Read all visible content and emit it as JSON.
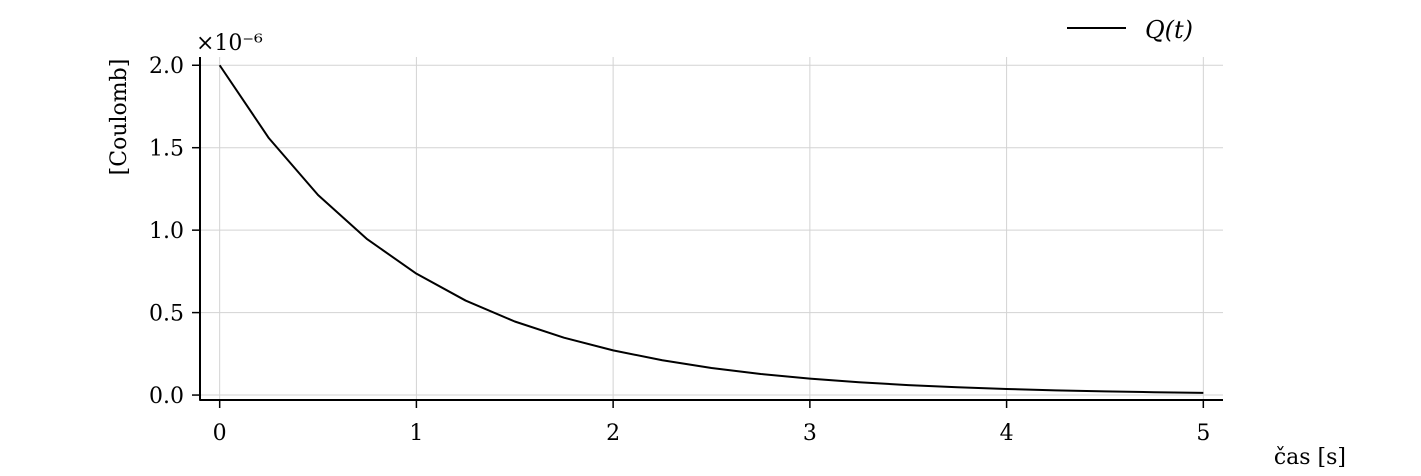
{
  "chart_data": {
    "type": "line",
    "xlabel": "čas [s]",
    "ylabel": "[Coulomb]",
    "y_offset_label": "×10⁻⁶",
    "xlim": [
      -0.1,
      5.1
    ],
    "ylim": [
      -0.03,
      2.05
    ],
    "y_scale_factor": 1e-06,
    "grid": true,
    "legend_position": "top-right",
    "x_ticks": [
      0,
      1,
      2,
      3,
      4,
      5
    ],
    "x_tick_labels": [
      "0",
      "1",
      "2",
      "3",
      "4",
      "5"
    ],
    "y_ticks": [
      0.0,
      0.5,
      1.0,
      1.5,
      2.0
    ],
    "y_tick_labels": [
      "0.0",
      "0.5",
      "1.0",
      "1.5",
      "2.0"
    ],
    "series": [
      {
        "name": "Q(t)",
        "color": "#000000",
        "x": [
          0,
          0.25,
          0.5,
          0.75,
          1,
          1.25,
          1.5,
          1.75,
          2,
          2.25,
          2.5,
          2.75,
          3,
          3.25,
          3.5,
          3.75,
          4,
          4.25,
          4.5,
          4.75,
          5
        ],
        "y": [
          2.0,
          1.558,
          1.213,
          0.945,
          0.736,
          0.573,
          0.446,
          0.348,
          0.271,
          0.211,
          0.164,
          0.128,
          0.0996,
          0.0776,
          0.0604,
          0.047,
          0.0366,
          0.0285,
          0.0222,
          0.0173,
          0.0135
        ]
      }
    ]
  }
}
